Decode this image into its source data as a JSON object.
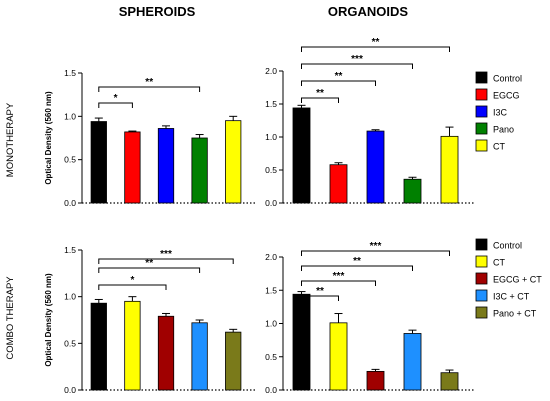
{
  "column_headers": [
    "SPHEROIDS",
    "ORGANOIDS"
  ],
  "row_headers": [
    "MONOTHERAPY",
    "COMBO THERAPY"
  ],
  "chart_data": [
    {
      "type": "bar",
      "panel": "monotherapy-spheroids",
      "ylabel": "Optical Density (560 nm)",
      "ylim": [
        0,
        1.5
      ],
      "yticks": [
        "0.0",
        "0.5",
        "1.0",
        "1.5"
      ],
      "categories": [
        "Control",
        "EGCG",
        "I3C",
        "Pano",
        "CT"
      ],
      "colors": [
        "#000000",
        "#ff0000",
        "#0000ff",
        "#008000",
        "#ffff00"
      ],
      "values": [
        0.94,
        0.82,
        0.86,
        0.75,
        0.95
      ],
      "errors": [
        0.04,
        0.01,
        0.03,
        0.04,
        0.05
      ],
      "significance": [
        {
          "from": 0,
          "to": 1,
          "label": "*"
        },
        {
          "from": 0,
          "to": 3,
          "label": "**"
        }
      ]
    },
    {
      "type": "bar",
      "panel": "monotherapy-organoids",
      "ylabel": "",
      "ylim": [
        0,
        2.0
      ],
      "yticks": [
        "0.0",
        "0.5",
        "1.0",
        "1.5",
        "2.0"
      ],
      "categories": [
        "Control",
        "EGCG",
        "I3C",
        "Pano",
        "CT"
      ],
      "colors": [
        "#000000",
        "#ff0000",
        "#0000ff",
        "#008000",
        "#ffff00"
      ],
      "values": [
        1.44,
        0.58,
        1.09,
        0.36,
        1.01
      ],
      "errors": [
        0.04,
        0.03,
        0.02,
        0.03,
        0.14
      ],
      "significance": [
        {
          "from": 0,
          "to": 1,
          "label": "**"
        },
        {
          "from": 0,
          "to": 2,
          "label": "**"
        },
        {
          "from": 0,
          "to": 3,
          "label": "***"
        },
        {
          "from": 0,
          "to": 4,
          "label": "**"
        }
      ]
    },
    {
      "type": "bar",
      "panel": "combo-spheroids",
      "ylabel": "Optical Density (560 nm)",
      "ylim": [
        0,
        1.5
      ],
      "yticks": [
        "0.0",
        "0.5",
        "1.0",
        "1.5"
      ],
      "categories": [
        "Control",
        "CT",
        "EGCG + CT",
        "I3C + CT",
        "Pano + CT"
      ],
      "colors": [
        "#000000",
        "#ffff00",
        "#a00000",
        "#1e90ff",
        "#7a7a1a"
      ],
      "values": [
        0.93,
        0.95,
        0.79,
        0.72,
        0.62
      ],
      "errors": [
        0.04,
        0.05,
        0.03,
        0.03,
        0.03
      ],
      "significance": [
        {
          "from": 0,
          "to": 2,
          "label": "*"
        },
        {
          "from": 0,
          "to": 3,
          "label": "**"
        },
        {
          "from": 0,
          "to": 4,
          "label": "***"
        }
      ]
    },
    {
      "type": "bar",
      "panel": "combo-organoids",
      "ylabel": "",
      "ylim": [
        0,
        2.0
      ],
      "yticks": [
        "0.0",
        "0.5",
        "1.0",
        "1.5",
        "2.0"
      ],
      "categories": [
        "Control",
        "CT",
        "EGCG + CT",
        "I3C + CT",
        "Pano + CT"
      ],
      "colors": [
        "#000000",
        "#ffff00",
        "#a00000",
        "#1e90ff",
        "#7a7a1a"
      ],
      "values": [
        1.44,
        1.01,
        0.28,
        0.85,
        0.26
      ],
      "errors": [
        0.04,
        0.14,
        0.03,
        0.05,
        0.04
      ],
      "significance": [
        {
          "from": 0,
          "to": 1,
          "label": "**"
        },
        {
          "from": 0,
          "to": 2,
          "label": "***"
        },
        {
          "from": 0,
          "to": 3,
          "label": "**"
        },
        {
          "from": 0,
          "to": 4,
          "label": "***"
        }
      ]
    }
  ],
  "legends": [
    {
      "items": [
        "Control",
        "EGCG",
        "I3C",
        "Pano",
        "CT"
      ],
      "colors": [
        "#000000",
        "#ff0000",
        "#0000ff",
        "#008000",
        "#ffff00"
      ]
    },
    {
      "items": [
        "Control",
        "CT",
        "EGCG + CT",
        "I3C + CT",
        "Pano + CT"
      ],
      "colors": [
        "#000000",
        "#ffff00",
        "#a00000",
        "#1e90ff",
        "#7a7a1a"
      ]
    }
  ]
}
